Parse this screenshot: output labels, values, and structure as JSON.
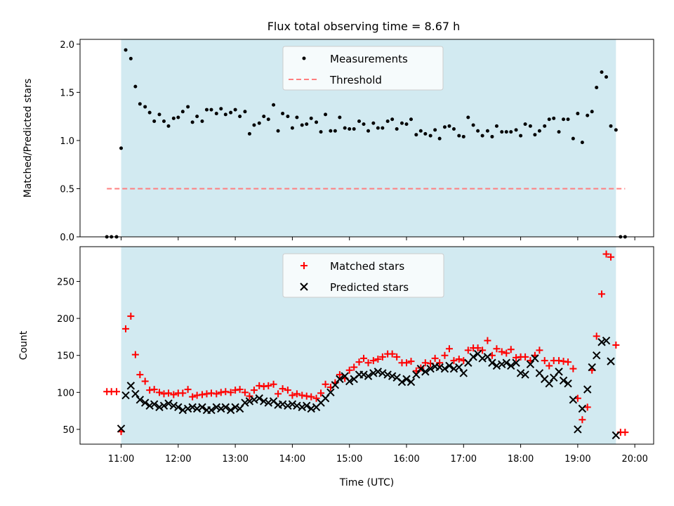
{
  "title": "Flux total observing time = 8.67 h",
  "colors": {
    "observing_band": "#add8e6",
    "measurement": "#000000",
    "threshold": "#ff7f7f",
    "matched": "#ff0000",
    "predicted": "#000000"
  },
  "chart_data": [
    {
      "type": "scatter",
      "ylabel": "Matched/Predicted stars",
      "xlim": [
        10.28,
        20.33
      ],
      "ylim": [
        0,
        2.05
      ],
      "yticks": [
        0.0,
        0.5,
        1.0,
        1.5,
        2.0
      ],
      "ytick_labels": [
        "0.0",
        "0.5",
        "1.0",
        "1.5",
        "2.0"
      ],
      "observing_window": [
        11.0,
        19.67
      ],
      "legend": {
        "placement": "top-center",
        "entries": [
          "Measurements",
          "Threshold"
        ]
      },
      "threshold": {
        "name": "Threshold",
        "value": 0.5,
        "x_range": [
          10.75,
          19.83
        ]
      },
      "series": [
        {
          "name": "Measurements",
          "x": [
            10.75,
            10.83,
            10.92,
            11.0,
            11.08,
            11.17,
            11.25,
            11.33,
            11.42,
            11.5,
            11.58,
            11.67,
            11.75,
            11.83,
            11.92,
            12.0,
            12.08,
            12.17,
            12.25,
            12.33,
            12.42,
            12.5,
            12.58,
            12.67,
            12.75,
            12.83,
            12.92,
            13.0,
            13.08,
            13.17,
            13.25,
            13.33,
            13.42,
            13.5,
            13.58,
            13.67,
            13.75,
            13.83,
            13.92,
            14.0,
            14.08,
            14.17,
            14.25,
            14.33,
            14.42,
            14.5,
            14.58,
            14.67,
            14.75,
            14.83,
            14.92,
            15.0,
            15.08,
            15.17,
            15.25,
            15.33,
            15.42,
            15.5,
            15.58,
            15.67,
            15.75,
            15.83,
            15.92,
            16.0,
            16.08,
            16.17,
            16.25,
            16.33,
            16.42,
            16.5,
            16.58,
            16.67,
            16.75,
            16.83,
            16.92,
            17.0,
            17.08,
            17.17,
            17.25,
            17.33,
            17.42,
            17.5,
            17.58,
            17.67,
            17.75,
            17.83,
            17.92,
            18.0,
            18.08,
            18.17,
            18.25,
            18.33,
            18.42,
            18.5,
            18.58,
            18.67,
            18.75,
            18.83,
            18.92,
            19.0,
            19.08,
            19.17,
            19.25,
            19.33,
            19.42,
            19.5,
            19.58,
            19.67,
            19.75,
            19.83
          ],
          "y": [
            0.0,
            0.0,
            0.0,
            0.92,
            1.94,
            1.85,
            1.56,
            1.38,
            1.35,
            1.29,
            1.2,
            1.27,
            1.2,
            1.15,
            1.23,
            1.24,
            1.3,
            1.35,
            1.19,
            1.25,
            1.2,
            1.32,
            1.32,
            1.28,
            1.33,
            1.27,
            1.29,
            1.32,
            1.25,
            1.3,
            1.07,
            1.16,
            1.18,
            1.25,
            1.22,
            1.37,
            1.1,
            1.28,
            1.25,
            1.13,
            1.24,
            1.16,
            1.17,
            1.23,
            1.19,
            1.09,
            1.27,
            1.1,
            1.1,
            1.24,
            1.13,
            1.12,
            1.12,
            1.2,
            1.17,
            1.1,
            1.18,
            1.13,
            1.13,
            1.2,
            1.22,
            1.12,
            1.18,
            1.17,
            1.22,
            1.06,
            1.1,
            1.07,
            1.05,
            1.11,
            1.02,
            1.14,
            1.15,
            1.12,
            1.05,
            1.04,
            1.24,
            1.16,
            1.1,
            1.05,
            1.1,
            1.04,
            1.15,
            1.09,
            1.09,
            1.09,
            1.11,
            1.05,
            1.17,
            1.15,
            1.06,
            1.1,
            1.15,
            1.22,
            1.23,
            1.09,
            1.22,
            1.22,
            1.02,
            1.28,
            0.98,
            1.26,
            1.3,
            1.55,
            1.71,
            1.66,
            1.15,
            1.11,
            0.0,
            0.0
          ]
        }
      ]
    },
    {
      "type": "scatter",
      "ylabel": "Count",
      "xlabel": "Time (UTC)",
      "xlim": [
        10.28,
        20.33
      ],
      "ylim": [
        30,
        297
      ],
      "yticks": [
        50,
        100,
        150,
        200,
        250
      ],
      "ytick_labels": [
        "50",
        "100",
        "150",
        "200",
        "250"
      ],
      "xticks": [
        11,
        12,
        13,
        14,
        15,
        16,
        17,
        18,
        19,
        20
      ],
      "xtick_labels": [
        "11:00",
        "12:00",
        "13:00",
        "14:00",
        "15:00",
        "16:00",
        "17:00",
        "18:00",
        "19:00",
        "20:00"
      ],
      "observing_window": [
        11.0,
        19.67
      ],
      "legend": {
        "placement": "top-center",
        "entries": [
          "Matched stars",
          "Predicted stars"
        ]
      },
      "series": [
        {
          "name": "Matched stars",
          "marker": "plus",
          "x": [
            10.75,
            10.83,
            10.92,
            11.0,
            11.08,
            11.17,
            11.25,
            11.33,
            11.42,
            11.5,
            11.58,
            11.67,
            11.75,
            11.83,
            11.92,
            12.0,
            12.08,
            12.17,
            12.25,
            12.33,
            12.42,
            12.5,
            12.58,
            12.67,
            12.75,
            12.83,
            12.92,
            13.0,
            13.08,
            13.17,
            13.25,
            13.33,
            13.42,
            13.5,
            13.58,
            13.67,
            13.75,
            13.83,
            13.92,
            14.0,
            14.08,
            14.17,
            14.25,
            14.33,
            14.42,
            14.5,
            14.58,
            14.67,
            14.75,
            14.83,
            14.92,
            15.0,
            15.08,
            15.17,
            15.25,
            15.33,
            15.42,
            15.5,
            15.58,
            15.67,
            15.75,
            15.83,
            15.92,
            16.0,
            16.08,
            16.17,
            16.25,
            16.33,
            16.42,
            16.5,
            16.58,
            16.67,
            16.75,
            16.83,
            16.92,
            17.0,
            17.08,
            17.17,
            17.25,
            17.33,
            17.42,
            17.5,
            17.58,
            17.67,
            17.75,
            17.83,
            17.92,
            18.0,
            18.08,
            18.17,
            18.25,
            18.33,
            18.42,
            18.5,
            18.58,
            18.67,
            18.75,
            18.83,
            18.92,
            19.0,
            19.08,
            19.17,
            19.25,
            19.33,
            19.42,
            19.5,
            19.58,
            19.67,
            19.75,
            19.83
          ],
          "y": [
            101,
            101,
            101,
            47,
            186,
            203,
            151,
            124,
            115,
            103,
            104,
            100,
            98,
            99,
            97,
            99,
            99,
            104,
            94,
            96,
            97,
            98,
            99,
            98,
            100,
            101,
            100,
            103,
            104,
            100,
            95,
            103,
            109,
            108,
            109,
            111,
            98,
            105,
            103,
            96,
            98,
            96,
            95,
            94,
            92,
            99,
            111,
            107,
            113,
            124,
            119,
            130,
            134,
            141,
            146,
            140,
            143,
            145,
            148,
            152,
            152,
            148,
            140,
            140,
            142,
            129,
            133,
            140,
            139,
            146,
            140,
            150,
            159,
            143,
            145,
            143,
            157,
            160,
            160,
            157,
            170,
            150,
            159,
            155,
            153,
            158,
            147,
            148,
            148,
            143,
            150,
            157,
            143,
            136,
            143,
            143,
            142,
            141,
            132,
            92,
            63,
            80,
            130,
            176,
            233,
            287,
            283,
            164,
            46,
            46
          ]
        },
        {
          "name": "Predicted stars",
          "marker": "x",
          "x": [
            11.0,
            11.08,
            11.17,
            11.25,
            11.33,
            11.42,
            11.5,
            11.58,
            11.67,
            11.75,
            11.83,
            11.92,
            12.0,
            12.08,
            12.17,
            12.25,
            12.33,
            12.42,
            12.5,
            12.58,
            12.67,
            12.75,
            12.83,
            12.92,
            13.0,
            13.08,
            13.17,
            13.25,
            13.33,
            13.42,
            13.5,
            13.58,
            13.67,
            13.75,
            13.83,
            13.92,
            14.0,
            14.08,
            14.17,
            14.25,
            14.33,
            14.42,
            14.5,
            14.58,
            14.67,
            14.75,
            14.83,
            14.92,
            15.0,
            15.08,
            15.17,
            15.25,
            15.33,
            15.42,
            15.5,
            15.58,
            15.67,
            15.75,
            15.83,
            15.92,
            16.0,
            16.08,
            16.17,
            16.25,
            16.33,
            16.42,
            16.5,
            16.58,
            16.67,
            16.75,
            16.83,
            16.92,
            17.0,
            17.08,
            17.17,
            17.25,
            17.33,
            17.42,
            17.5,
            17.58,
            17.67,
            17.75,
            17.83,
            17.92,
            18.0,
            18.08,
            18.17,
            18.25,
            18.33,
            18.42,
            18.5,
            18.58,
            18.67,
            18.75,
            18.83,
            18.92,
            19.0,
            19.08,
            19.17,
            19.25,
            19.33,
            19.42,
            19.5,
            19.58,
            19.67
          ],
          "y": [
            51,
            96,
            109,
            98,
            90,
            86,
            82,
            84,
            80,
            82,
            85,
            82,
            80,
            76,
            78,
            80,
            78,
            80,
            76,
            76,
            80,
            78,
            80,
            76,
            80,
            78,
            86,
            88,
            90,
            92,
            88,
            86,
            88,
            83,
            84,
            82,
            84,
            82,
            80,
            82,
            78,
            80,
            86,
            92,
            100,
            110,
            118,
            122,
            115,
            118,
            124,
            124,
            122,
            126,
            128,
            126,
            124,
            122,
            120,
            114,
            118,
            114,
            124,
            132,
            128,
            132,
            135,
            134,
            132,
            136,
            132,
            134,
            126,
            140,
            148,
            152,
            146,
            148,
            140,
            136,
            138,
            140,
            136,
            140,
            126,
            124,
            138,
            146,
            126,
            118,
            112,
            120,
            128,
            116,
            112,
            90,
            50,
            78,
            104,
            134,
            150,
            168,
            170,
            142,
            42
          ]
        }
      ]
    }
  ]
}
